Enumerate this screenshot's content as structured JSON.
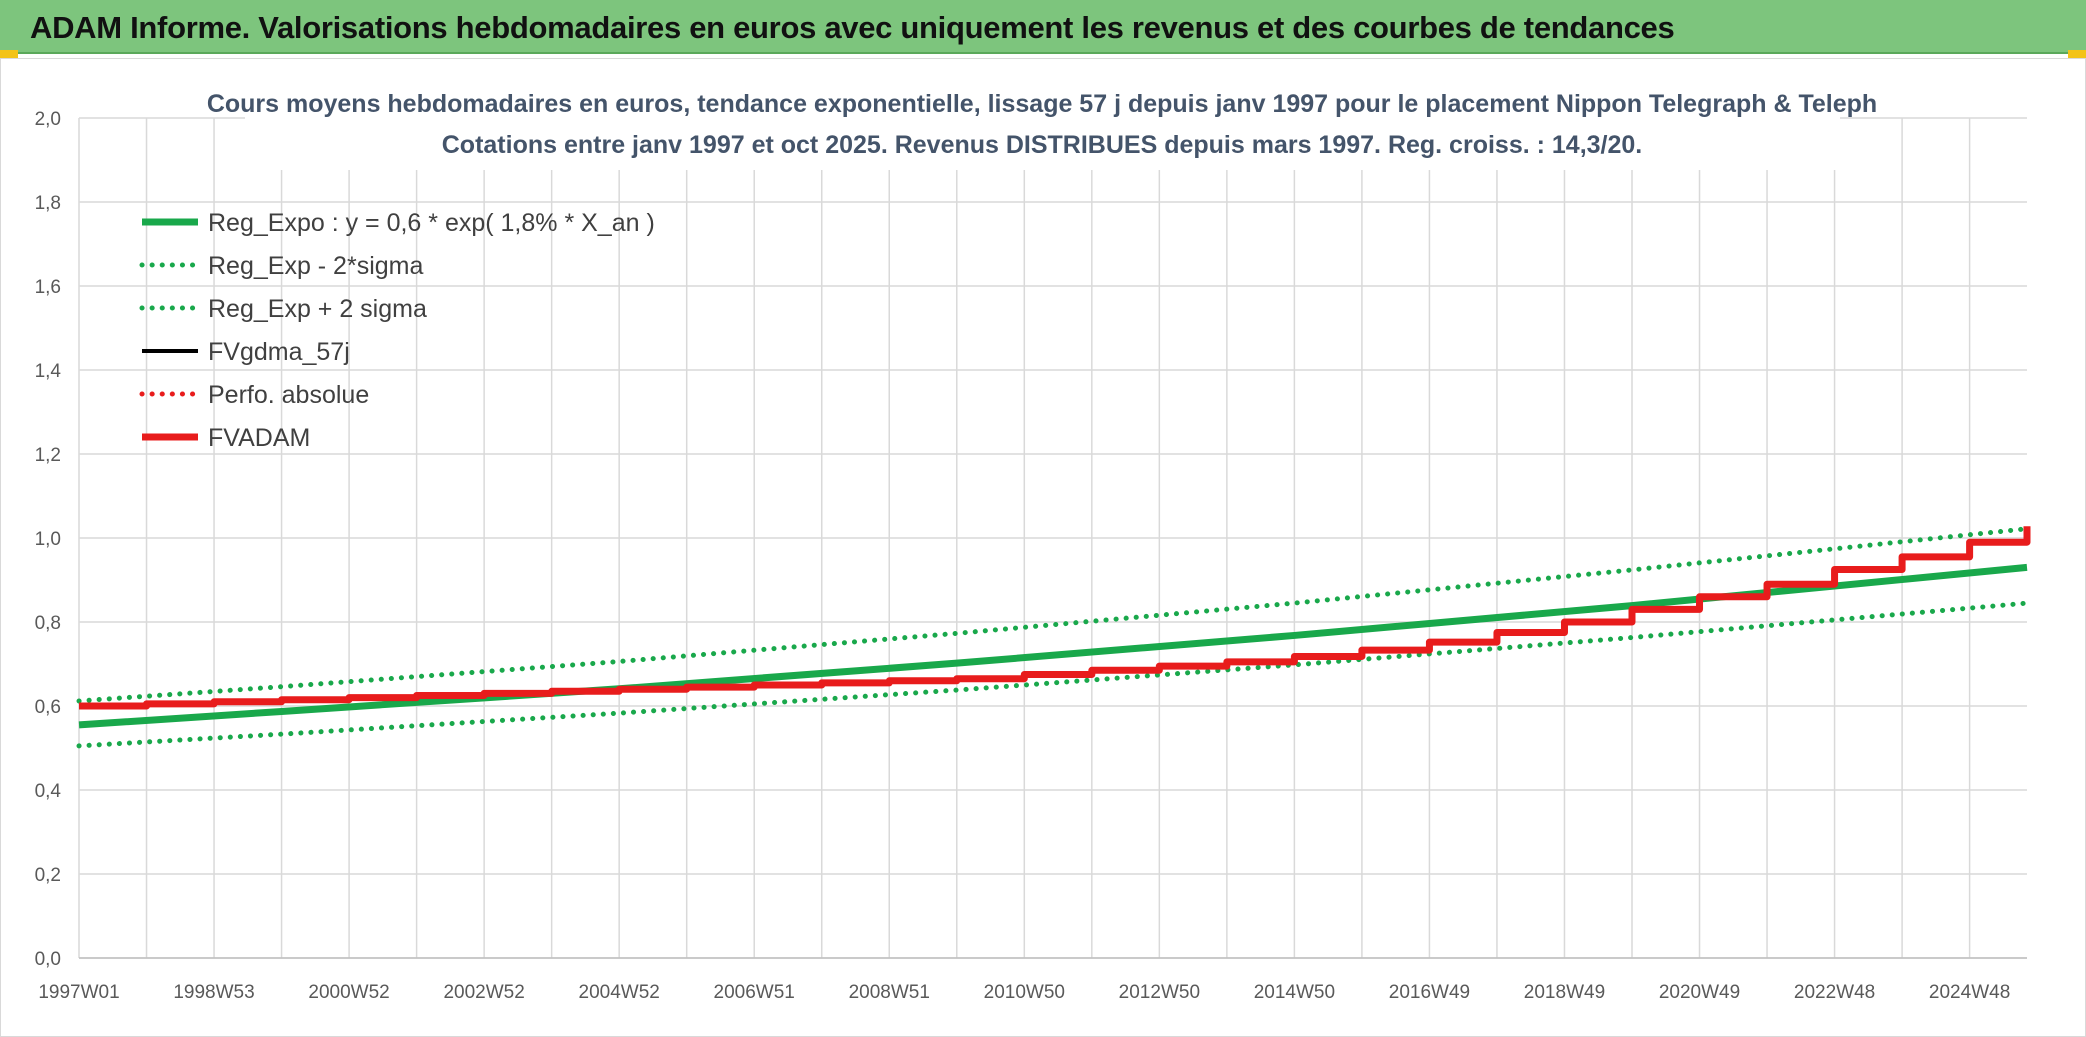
{
  "header": {
    "title": "ADAM Informe. Valorisations hebdomadaires en euros avec uniquement les revenus et des courbes de tendances"
  },
  "colors": {
    "banner": "#7dc57d",
    "reg_expo": "#19a84b",
    "sigma_bands": "#19a84b",
    "fvgdma": "#000000",
    "perfo": "#e81c1c",
    "fvadam": "#e81c1c"
  },
  "chart_data": {
    "type": "line",
    "title_lines": [
      "Cours moyens hebdomadaires en euros, tendance exponentielle, lissage 57 j depuis janv 1997 pour le placement Nippon Telegraph & Teleph",
      "Cotations entre janv 1997 et oct 2025. Revenus DISTRIBUES depuis mars 1997. Reg. croiss. : 14,3/20."
    ],
    "xlabel": "",
    "ylabel": "",
    "xlim": [
      1997.0,
      2025.85
    ],
    "ylim": [
      0,
      2.0
    ],
    "y_ticks": [
      "0,0",
      "0,2",
      "0,4",
      "0,6",
      "0,8",
      "1,0",
      "1,2",
      "1,4",
      "1,6",
      "1,8",
      "2,0"
    ],
    "x_tick_labels": [
      {
        "label": "1997W01",
        "x": 1997.0
      },
      {
        "label": "1998W53",
        "x": 1999.0
      },
      {
        "label": "2000W52",
        "x": 2001.0
      },
      {
        "label": "2002W52",
        "x": 2003.0
      },
      {
        "label": "2004W52",
        "x": 2005.0
      },
      {
        "label": "2006W51",
        "x": 2007.0
      },
      {
        "label": "2008W51",
        "x": 2009.0
      },
      {
        "label": "2010W50",
        "x": 2011.0
      },
      {
        "label": "2012W50",
        "x": 2013.0
      },
      {
        "label": "2014W50",
        "x": 2015.0
      },
      {
        "label": "2016W49",
        "x": 2017.0
      },
      {
        "label": "2018W49",
        "x": 2019.0
      },
      {
        "label": "2020W49",
        "x": 2021.0
      },
      {
        "label": "2022W48",
        "x": 2023.0
      },
      {
        "label": "2024W48",
        "x": 2025.0
      }
    ],
    "grid": true,
    "legend_placement": "top-left",
    "series": [
      {
        "name": "Reg_Expo : y = 0,6 * exp( 1,8% *  X_an )",
        "style": "solid",
        "x": [
          1997.0,
          2000.0,
          2005.0,
          2010.0,
          2015.0,
          2020.0,
          2025.85
        ],
        "values": [
          0.555,
          0.587,
          0.641,
          0.702,
          0.768,
          0.839,
          0.93
        ]
      },
      {
        "name": "Reg_Exp - 2*sigma",
        "style": "dotted",
        "x": [
          1997.0,
          2000.0,
          2005.0,
          2010.0,
          2015.0,
          2020.0,
          2025.85
        ],
        "values": [
          0.505,
          0.533,
          0.583,
          0.638,
          0.698,
          0.763,
          0.845
        ]
      },
      {
        "name": "Reg_Exp + 2 sigma",
        "style": "dotted",
        "x": [
          1997.0,
          2000.0,
          2005.0,
          2010.0,
          2015.0,
          2020.0,
          2025.85
        ],
        "values": [
          0.612,
          0.646,
          0.706,
          0.773,
          0.845,
          0.924,
          1.022
        ]
      },
      {
        "name": "FVgdma_57j",
        "style": "solid-thin",
        "x": [],
        "values": []
      },
      {
        "name": "Perfo. absolue",
        "style": "dotted",
        "x": [],
        "values": []
      },
      {
        "name": "FVADAM",
        "style": "solid",
        "x": [
          1997.0,
          1998.0,
          1999.0,
          2000.0,
          2001.0,
          2002.0,
          2003.0,
          2004.0,
          2005.0,
          2006.0,
          2007.0,
          2008.0,
          2009.0,
          2010.0,
          2011.0,
          2012.0,
          2013.0,
          2014.0,
          2015.0,
          2016.0,
          2017.0,
          2018.0,
          2019.0,
          2020.0,
          2021.0,
          2022.0,
          2023.0,
          2024.0,
          2025.0,
          2025.85
        ],
        "values": [
          0.6,
          0.605,
          0.61,
          0.615,
          0.62,
          0.625,
          0.63,
          0.635,
          0.64,
          0.645,
          0.65,
          0.655,
          0.66,
          0.665,
          0.675,
          0.685,
          0.695,
          0.705,
          0.718,
          0.733,
          0.752,
          0.775,
          0.8,
          0.83,
          0.86,
          0.89,
          0.925,
          0.955,
          0.99,
          1.028
        ]
      }
    ]
  }
}
